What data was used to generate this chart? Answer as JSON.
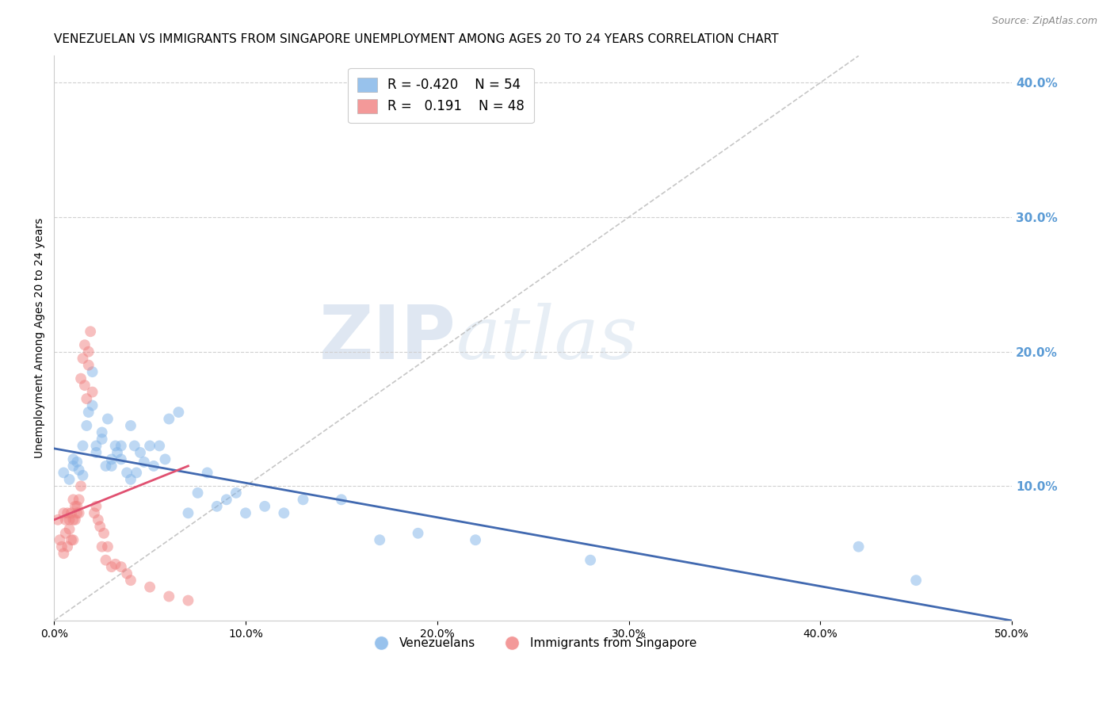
{
  "title": "VENEZUELAN VS IMMIGRANTS FROM SINGAPORE UNEMPLOYMENT AMONG AGES 20 TO 24 YEARS CORRELATION CHART",
  "source": "Source: ZipAtlas.com",
  "xlabel": "",
  "ylabel": "Unemployment Among Ages 20 to 24 years",
  "xlim": [
    0.0,
    0.5
  ],
  "ylim": [
    0.0,
    0.42
  ],
  "xticks": [
    0.0,
    0.1,
    0.2,
    0.3,
    0.4,
    0.5
  ],
  "xtick_labels": [
    "0.0%",
    "10.0%",
    "20.0%",
    "30.0%",
    "40.0%",
    "50.0%"
  ],
  "yticks_right": [
    0.1,
    0.2,
    0.3,
    0.4
  ],
  "ytick_labels_right": [
    "10.0%",
    "20.0%",
    "30.0%",
    "40.0%"
  ],
  "venezuelan_color": "#7FB3E8",
  "singapore_color": "#F08080",
  "trendline_venezuelan_color": "#4169B0",
  "trendline_singapore_color": "#E05070",
  "identity_line_color": "#C0C0C0",
  "grid_color": "#D0D0D0",
  "right_axis_color": "#5B9BD5",
  "legend_R_venezuelan": "-0.420",
  "legend_N_venezuelan": "54",
  "legend_R_singapore": "0.191",
  "legend_N_singapore": "48",
  "watermark_zip": "ZIP",
  "watermark_atlas": "atlas",
  "venezuelan_x": [
    0.005,
    0.008,
    0.01,
    0.01,
    0.012,
    0.013,
    0.015,
    0.015,
    0.017,
    0.018,
    0.02,
    0.02,
    0.022,
    0.022,
    0.025,
    0.025,
    0.027,
    0.028,
    0.03,
    0.03,
    0.032,
    0.033,
    0.035,
    0.035,
    0.038,
    0.04,
    0.04,
    0.042,
    0.043,
    0.045,
    0.047,
    0.05,
    0.052,
    0.055,
    0.058,
    0.06,
    0.065,
    0.07,
    0.075,
    0.08,
    0.085,
    0.09,
    0.095,
    0.1,
    0.11,
    0.12,
    0.13,
    0.15,
    0.17,
    0.19,
    0.22,
    0.28,
    0.42,
    0.45
  ],
  "venezuelan_y": [
    0.11,
    0.105,
    0.12,
    0.115,
    0.118,
    0.112,
    0.13,
    0.108,
    0.145,
    0.155,
    0.16,
    0.185,
    0.13,
    0.125,
    0.14,
    0.135,
    0.115,
    0.15,
    0.12,
    0.115,
    0.13,
    0.125,
    0.13,
    0.12,
    0.11,
    0.145,
    0.105,
    0.13,
    0.11,
    0.125,
    0.118,
    0.13,
    0.115,
    0.13,
    0.12,
    0.15,
    0.155,
    0.08,
    0.095,
    0.11,
    0.085,
    0.09,
    0.095,
    0.08,
    0.085,
    0.08,
    0.09,
    0.09,
    0.06,
    0.065,
    0.06,
    0.045,
    0.055,
    0.03
  ],
  "singapore_x": [
    0.002,
    0.003,
    0.004,
    0.005,
    0.005,
    0.006,
    0.006,
    0.007,
    0.007,
    0.008,
    0.008,
    0.009,
    0.009,
    0.01,
    0.01,
    0.01,
    0.011,
    0.011,
    0.012,
    0.012,
    0.013,
    0.013,
    0.014,
    0.014,
    0.015,
    0.016,
    0.016,
    0.017,
    0.018,
    0.018,
    0.019,
    0.02,
    0.021,
    0.022,
    0.023,
    0.024,
    0.025,
    0.026,
    0.027,
    0.028,
    0.03,
    0.032,
    0.035,
    0.038,
    0.04,
    0.05,
    0.06,
    0.07
  ],
  "singapore_y": [
    0.075,
    0.06,
    0.055,
    0.08,
    0.05,
    0.065,
    0.075,
    0.055,
    0.08,
    0.068,
    0.075,
    0.06,
    0.08,
    0.09,
    0.075,
    0.06,
    0.085,
    0.075,
    0.08,
    0.085,
    0.09,
    0.08,
    0.1,
    0.18,
    0.195,
    0.205,
    0.175,
    0.165,
    0.19,
    0.2,
    0.215,
    0.17,
    0.08,
    0.085,
    0.075,
    0.07,
    0.055,
    0.065,
    0.045,
    0.055,
    0.04,
    0.042,
    0.04,
    0.035,
    0.03,
    0.025,
    0.018,
    0.015
  ],
  "ven_trendline_x": [
    0.0,
    0.5
  ],
  "ven_trendline_y": [
    0.128,
    0.0
  ],
  "sin_trendline_x": [
    0.0,
    0.07
  ],
  "sin_trendline_y": [
    0.075,
    0.115
  ],
  "marker_size": 100,
  "marker_alpha": 0.5,
  "title_fontsize": 11,
  "source_fontsize": 9,
  "label_fontsize": 10,
  "tick_fontsize": 10
}
